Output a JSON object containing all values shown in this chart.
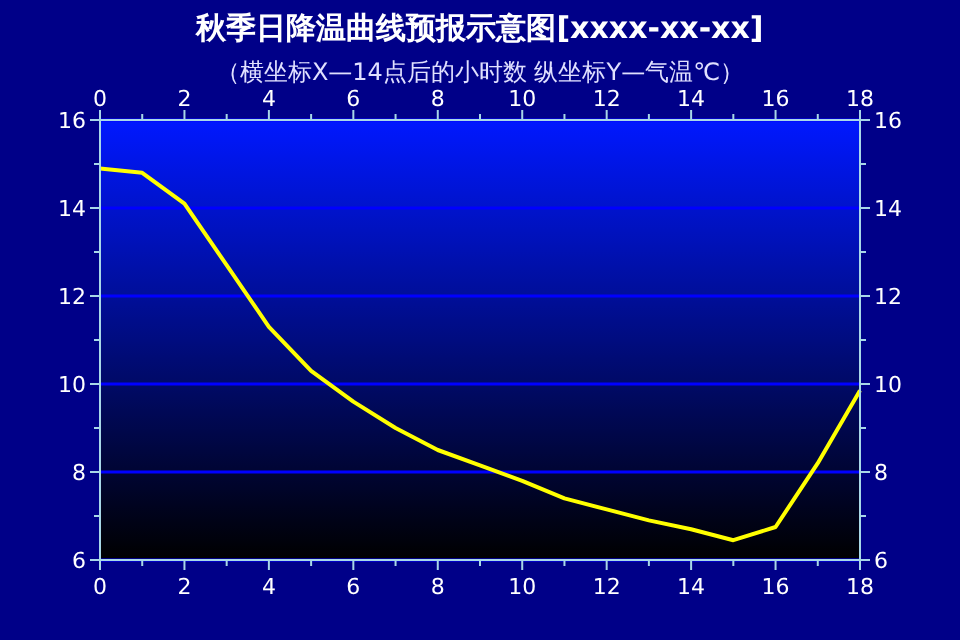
{
  "chart_data": {
    "type": "line",
    "title": "秋季日降温曲线预报示意图[xxxx-xx-xx]",
    "subtitle": "（横坐标X—14点后的小时数 纵坐标Y—气温℃）",
    "x": [
      0,
      1,
      2,
      3,
      4,
      5,
      6,
      7,
      8,
      9,
      10,
      11,
      12,
      13,
      14,
      15,
      16,
      17,
      18
    ],
    "series": [
      {
        "color": "#ffff00",
        "values": [
          14.9,
          14.8,
          14.1,
          12.7,
          11.3,
          10.3,
          9.6,
          9.0,
          8.5,
          8.15,
          7.8,
          7.4,
          7.15,
          6.9,
          6.7,
          6.45,
          6.75,
          8.2,
          9.85
        ]
      }
    ],
    "xlim": [
      0,
      18
    ],
    "xticks": [
      0,
      {
        "value": 1,
        "label": null
      },
      2,
      {
        "value": 3,
        "label": null
      },
      4,
      {
        "value": 5,
        "label": null
      },
      6,
      {
        "value": 7,
        "label": null
      },
      8,
      {
        "value": 9,
        "label": null
      },
      10,
      {
        "value": 11,
        "label": null
      },
      12,
      {
        "value": 13,
        "label": null
      },
      14,
      {
        "value": 15,
        "label": null
      },
      16,
      {
        "value": 17,
        "label": null
      },
      18
    ],
    "x2lim": [
      0,
      18
    ],
    "x2ticks": [
      0,
      {
        "value": 1,
        "label": null
      },
      2,
      {
        "value": 3,
        "label": null
      },
      4,
      {
        "value": 5,
        "label": null
      },
      6,
      {
        "value": 7,
        "label": null
      },
      8,
      {
        "value": 9,
        "label": null
      },
      10,
      {
        "value": 11,
        "label": null
      },
      12,
      {
        "value": 13,
        "label": null
      },
      14,
      {
        "value": 15,
        "label": null
      },
      16,
      {
        "value": 17,
        "label": null
      },
      18
    ],
    "ylim": [
      6,
      16
    ],
    "yticks": [
      6,
      {
        "value": 7,
        "label": null
      },
      8,
      {
        "value": 9,
        "label": null
      },
      10,
      {
        "value": 11,
        "label": null
      },
      12,
      {
        "value": 13,
        "label": null
      },
      14,
      {
        "value": 15,
        "label": null
      },
      16
    ],
    "y2lim": [
      6,
      16
    ],
    "y2ticks": [
      6,
      {
        "value": 7,
        "label": null
      },
      8,
      {
        "value": 9,
        "label": null
      },
      10,
      {
        "value": 11,
        "label": null
      },
      12,
      {
        "value": 13,
        "label": null
      },
      14,
      {
        "value": 15,
        "label": null
      },
      16
    ],
    "grid": "y",
    "marker": "none",
    "line_style": "solid"
  }
}
